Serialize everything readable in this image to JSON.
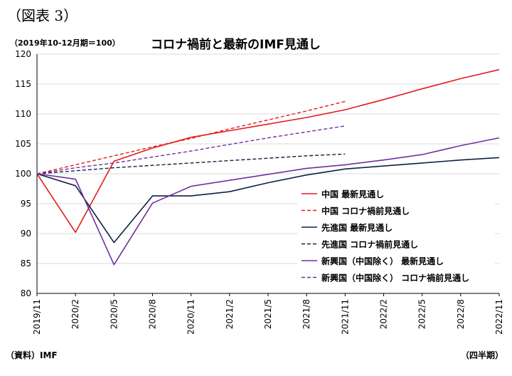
{
  "figure_label": "（図表 3）",
  "base_note": "（2019年10-12月期＝100）",
  "source": "（資料）IMF",
  "unit": "（四半期）",
  "chart_data": {
    "type": "line",
    "title": "コロナ禍前と最新のIMF見通し",
    "x": [
      "2019/11",
      "2020/2",
      "2020/5",
      "2020/8",
      "2020/11",
      "2021/2",
      "2021/5",
      "2021/8",
      "2021/11",
      "2022/2",
      "2022/5",
      "2022/8",
      "2022/11"
    ],
    "ylim": [
      80,
      120
    ],
    "yticks": [
      80,
      85,
      90,
      95,
      100,
      105,
      110,
      115,
      120
    ],
    "grid": "horizontal",
    "legend_position": "right",
    "series": [
      {
        "name": "中国 最新見通し",
        "color": "#e41a1c",
        "dash": false,
        "values": [
          100,
          90.2,
          102.1,
          104.3,
          106.1,
          107.2,
          108.3,
          109.4,
          110.7,
          112.4,
          114.2,
          115.9,
          117.4
        ]
      },
      {
        "name": "中国 コロナ禍前見通し",
        "color": "#e41a1c",
        "dash": true,
        "values": [
          100,
          101.5,
          103.0,
          104.5,
          105.9,
          107.5,
          109.0,
          110.5,
          112.1,
          null,
          null,
          null,
          null
        ]
      },
      {
        "name": "先進国 最新見通し",
        "color": "#0d2240",
        "dash": false,
        "values": [
          100,
          98.0,
          88.5,
          96.3,
          96.3,
          97.0,
          98.5,
          99.8,
          100.8,
          101.3,
          101.8,
          102.3,
          102.7
        ]
      },
      {
        "name": "先進国 コロナ禍前見通し",
        "color": "#0d2240",
        "dash": true,
        "values": [
          100,
          100.5,
          101.0,
          101.4,
          101.8,
          102.2,
          102.6,
          103.0,
          103.3,
          null,
          null,
          null,
          null
        ]
      },
      {
        "name": "新興国（中国除く） 最新見通し",
        "color": "#7030a0",
        "dash": false,
        "values": [
          100,
          99.1,
          84.8,
          95.1,
          97.9,
          98.9,
          99.9,
          100.9,
          101.5,
          102.3,
          103.2,
          104.7,
          106.0
        ]
      },
      {
        "name": "新興国（中国除く） コロナ禍前見通し",
        "color": "#7030a0",
        "dash": true,
        "values": [
          100,
          101.0,
          101.8,
          102.8,
          103.8,
          104.9,
          106.0,
          107.0,
          108.0,
          null,
          null,
          null,
          null
        ]
      }
    ]
  }
}
